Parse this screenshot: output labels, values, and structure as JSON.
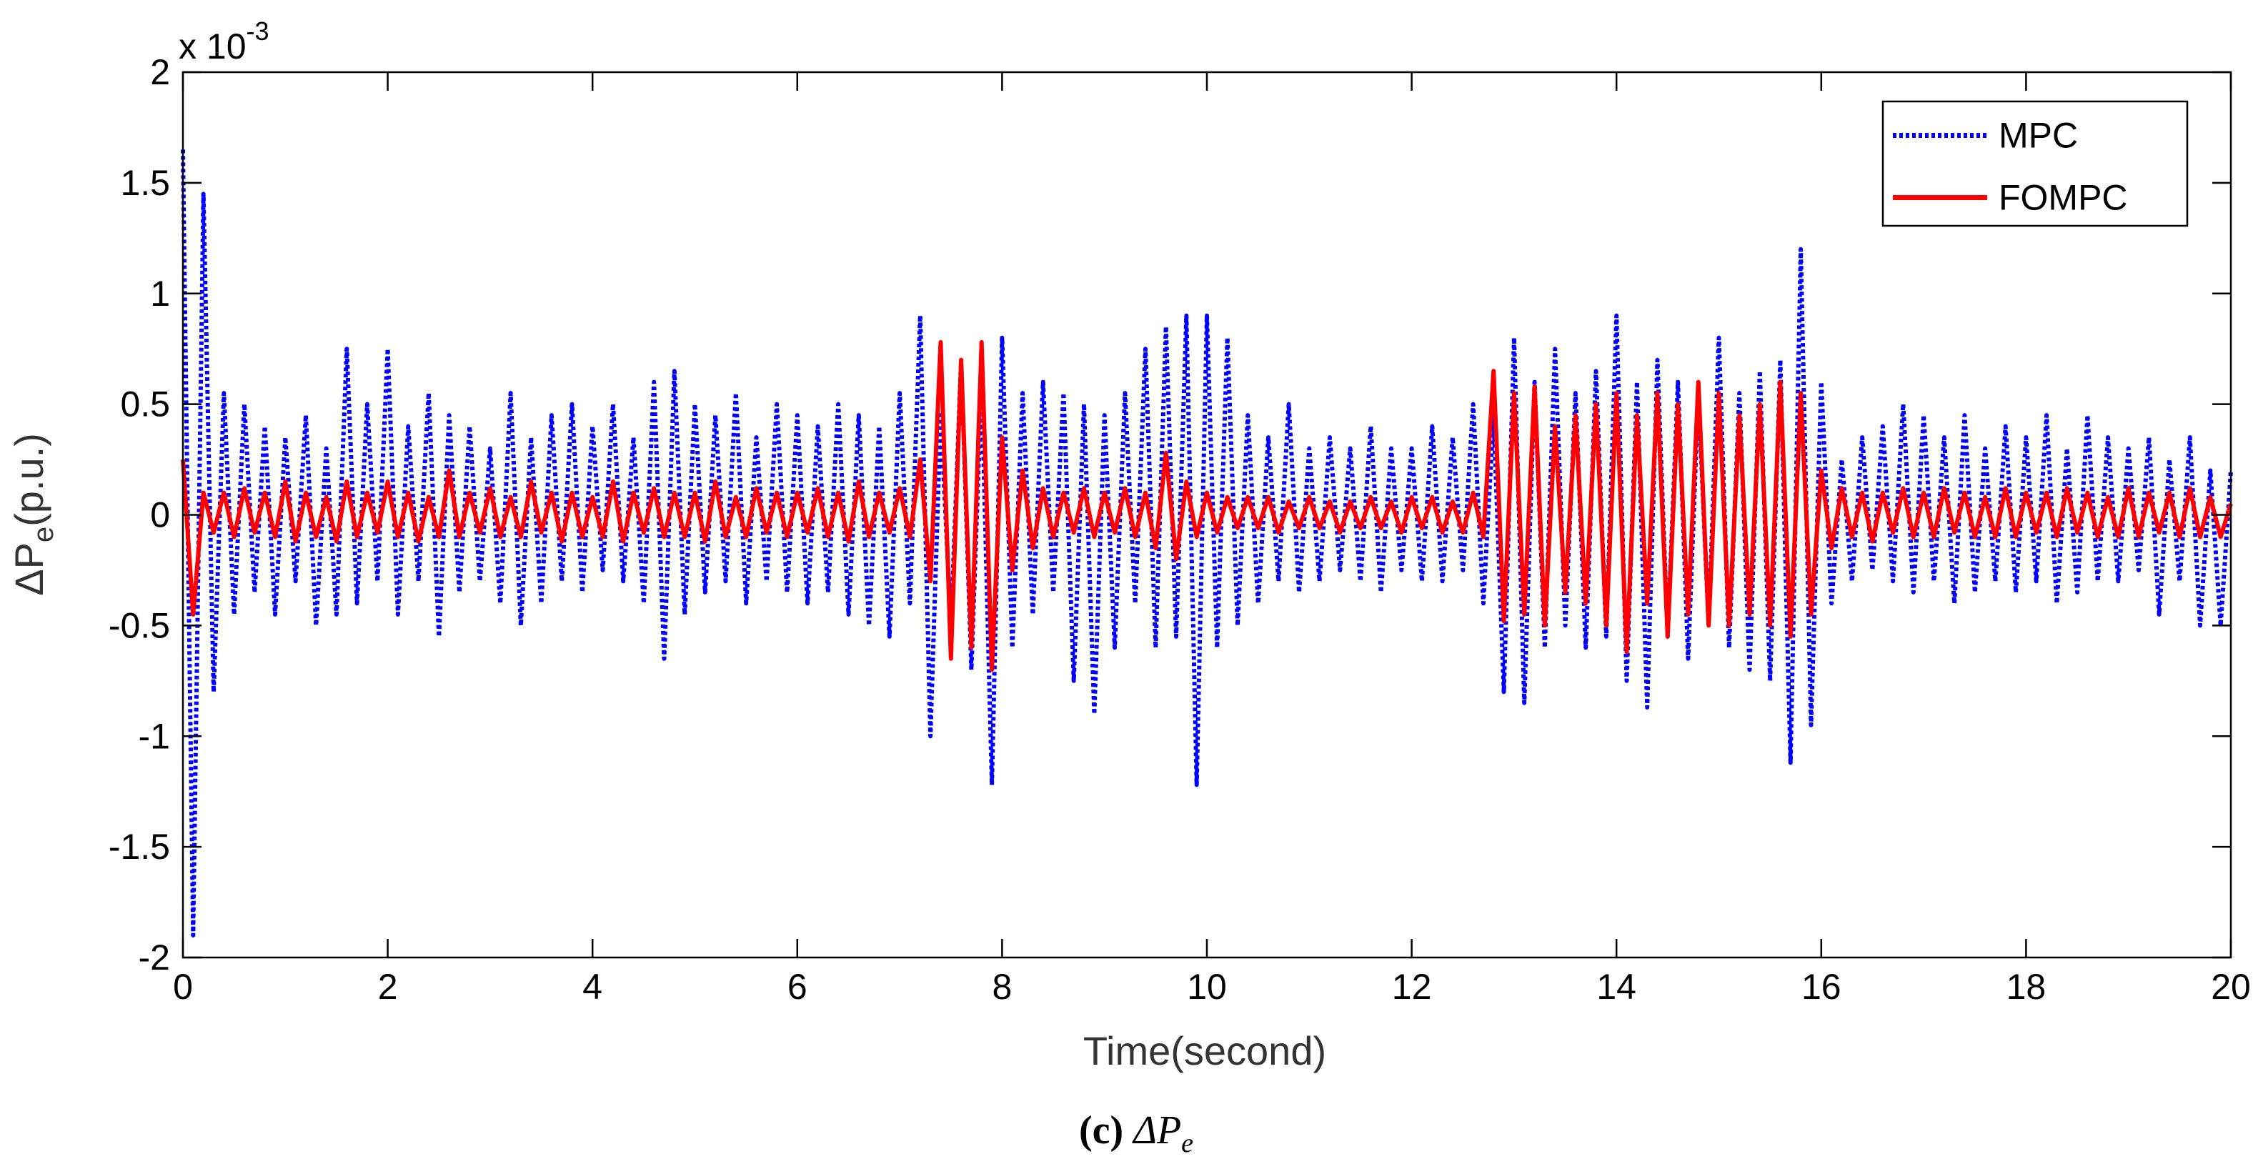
{
  "chart_data": {
    "type": "line",
    "x_label": "Time(second)",
    "y_label": {
      "symbol": "ΔP",
      "subscript": "e",
      "unit": "(p.u.)"
    },
    "y_multiplier": {
      "base": "x 10",
      "exponent": "-3"
    },
    "caption": {
      "label": "(c)",
      "symbol": "ΔP",
      "subscript": "e"
    },
    "xlim": [
      0,
      20
    ],
    "xticks": [
      0,
      2,
      4,
      6,
      8,
      10,
      12,
      14,
      16,
      18,
      20
    ],
    "ylim": [
      -2,
      2
    ],
    "yticks": [
      -2,
      -1.5,
      -1,
      -0.5,
      0,
      0.5,
      1,
      1.5,
      2
    ],
    "grid": false,
    "legend": "upper right",
    "x": [
      0,
      0.1,
      0.2,
      0.3,
      0.4,
      0.5,
      0.6,
      0.7,
      0.8,
      0.9,
      1,
      1.1,
      1.2,
      1.3,
      1.4,
      1.5,
      1.6,
      1.7,
      1.8,
      1.9,
      2,
      2.1,
      2.2,
      2.3,
      2.4,
      2.5,
      2.6,
      2.7,
      2.8,
      2.9,
      3,
      3.1,
      3.2,
      3.3,
      3.4,
      3.5,
      3.6,
      3.7,
      3.8,
      3.9,
      4,
      4.1,
      4.2,
      4.3,
      4.4,
      4.5,
      4.6,
      4.7,
      4.8,
      4.9,
      5,
      5.1,
      5.2,
      5.3,
      5.4,
      5.5,
      5.6,
      5.7,
      5.8,
      5.9,
      6,
      6.1,
      6.2,
      6.3,
      6.4,
      6.5,
      6.6,
      6.7,
      6.8,
      6.9,
      7,
      7.1,
      7.2,
      7.3,
      7.4,
      7.5,
      7.6,
      7.7,
      7.8,
      7.9,
      8,
      8.1,
      8.2,
      8.3,
      8.4,
      8.5,
      8.6,
      8.7,
      8.8,
      8.9,
      9,
      9.1,
      9.2,
      9.3,
      9.4,
      9.5,
      9.6,
      9.7,
      9.8,
      9.9,
      10,
      10.1,
      10.2,
      10.3,
      10.4,
      10.5,
      10.6,
      10.7,
      10.8,
      10.9,
      11,
      11.1,
      11.2,
      11.3,
      11.4,
      11.5,
      11.6,
      11.7,
      11.8,
      11.9,
      12,
      12.1,
      12.2,
      12.3,
      12.4,
      12.5,
      12.6,
      12.7,
      12.8,
      12.9,
      13,
      13.1,
      13.2,
      13.3,
      13.4,
      13.5,
      13.6,
      13.7,
      13.8,
      13.9,
      14,
      14.1,
      14.2,
      14.3,
      14.4,
      14.5,
      14.6,
      14.7,
      14.8,
      14.9,
      15,
      15.1,
      15.2,
      15.3,
      15.4,
      15.5,
      15.6,
      15.7,
      15.8,
      15.9,
      16,
      16.1,
      16.2,
      16.3,
      16.4,
      16.5,
      16.6,
      16.7,
      16.8,
      16.9,
      17,
      17.1,
      17.2,
      17.3,
      17.4,
      17.5,
      17.6,
      17.7,
      17.8,
      17.9,
      18,
      18.1,
      18.2,
      18.3,
      18.4,
      18.5,
      18.6,
      18.7,
      18.8,
      18.9,
      19,
      19.1,
      19.2,
      19.3,
      19.4,
      19.5,
      19.6,
      19.7,
      19.8,
      19.9,
      20
    ],
    "series": [
      {
        "name": "MPC",
        "color": "#0000ff",
        "style": "dotted",
        "values": [
          1.65,
          -1.9,
          1.45,
          -0.8,
          0.55,
          -0.45,
          0.5,
          -0.35,
          0.4,
          -0.45,
          0.35,
          -0.3,
          0.45,
          -0.5,
          0.3,
          -0.45,
          0.75,
          -0.4,
          0.5,
          -0.3,
          0.75,
          -0.45,
          0.4,
          -0.3,
          0.55,
          -0.55,
          0.45,
          -0.35,
          0.4,
          -0.3,
          0.3,
          -0.4,
          0.55,
          -0.5,
          0.35,
          -0.4,
          0.45,
          -0.3,
          0.5,
          -0.35,
          0.4,
          -0.25,
          0.5,
          -0.3,
          0.35,
          -0.4,
          0.6,
          -0.65,
          0.65,
          -0.45,
          0.5,
          -0.35,
          0.45,
          -0.3,
          0.55,
          -0.4,
          0.35,
          -0.3,
          0.5,
          -0.35,
          0.45,
          -0.4,
          0.4,
          -0.35,
          0.5,
          -0.45,
          0.45,
          -0.5,
          0.4,
          -0.55,
          0.55,
          -0.4,
          0.9,
          -1.0,
          0.45,
          -0.5,
          0.7,
          -0.7,
          0.6,
          -1.22,
          0.8,
          -0.6,
          0.55,
          -0.45,
          0.6,
          -0.35,
          0.55,
          -0.75,
          0.5,
          -0.9,
          0.45,
          -0.6,
          0.55,
          -0.4,
          0.75,
          -0.6,
          0.85,
          -0.55,
          0.9,
          -1.22,
          0.9,
          -0.6,
          0.8,
          -0.5,
          0.45,
          -0.4,
          0.35,
          -0.3,
          0.5,
          -0.35,
          0.3,
          -0.3,
          0.35,
          -0.25,
          0.3,
          -0.3,
          0.4,
          -0.35,
          0.3,
          -0.25,
          0.3,
          -0.3,
          0.4,
          -0.3,
          0.35,
          -0.25,
          0.5,
          -0.4,
          0.45,
          -0.8,
          0.8,
          -0.85,
          0.6,
          -0.6,
          0.75,
          -0.5,
          0.55,
          -0.6,
          0.65,
          -0.55,
          0.9,
          -0.75,
          0.6,
          -0.87,
          0.7,
          -0.55,
          0.6,
          -0.65,
          0.55,
          -0.5,
          0.8,
          -0.6,
          0.55,
          -0.7,
          0.65,
          -0.75,
          0.7,
          -1.12,
          1.2,
          -0.95,
          0.6,
          -0.4,
          0.25,
          -0.3,
          0.35,
          -0.25,
          0.4,
          -0.3,
          0.5,
          -0.35,
          0.45,
          -0.3,
          0.35,
          -0.4,
          0.45,
          -0.35,
          0.3,
          -0.3,
          0.4,
          -0.35,
          0.35,
          -0.3,
          0.45,
          -0.4,
          0.3,
          -0.35,
          0.45,
          -0.3,
          0.35,
          -0.3,
          0.3,
          -0.25,
          0.35,
          -0.45,
          0.25,
          -0.3,
          0.35,
          -0.5,
          0.2,
          -0.5,
          0.2
        ]
      },
      {
        "name": "FOMPC",
        "color": "#ff0000",
        "style": "solid",
        "values": [
          0.25,
          -0.45,
          0.1,
          -0.08,
          0.1,
          -0.1,
          0.12,
          -0.08,
          0.1,
          -0.1,
          0.15,
          -0.12,
          0.1,
          -0.1,
          0.08,
          -0.12,
          0.15,
          -0.1,
          0.1,
          -0.08,
          0.15,
          -0.1,
          0.1,
          -0.12,
          0.08,
          -0.1,
          0.2,
          -0.1,
          0.1,
          -0.08,
          0.12,
          -0.1,
          0.08,
          -0.1,
          0.15,
          -0.08,
          0.1,
          -0.12,
          0.1,
          -0.1,
          0.08,
          -0.1,
          0.15,
          -0.12,
          0.1,
          -0.08,
          0.12,
          -0.1,
          0.1,
          -0.1,
          0.1,
          -0.12,
          0.15,
          -0.1,
          0.08,
          -0.1,
          0.12,
          -0.08,
          0.1,
          -0.1,
          0.1,
          -0.08,
          0.12,
          -0.1,
          0.1,
          -0.12,
          0.15,
          -0.1,
          0.1,
          -0.08,
          0.12,
          -0.1,
          0.25,
          -0.3,
          0.78,
          -0.65,
          0.7,
          -0.6,
          0.78,
          -0.7,
          0.35,
          -0.25,
          0.2,
          -0.15,
          0.12,
          -0.1,
          0.1,
          -0.08,
          0.12,
          -0.1,
          0.1,
          -0.08,
          0.12,
          -0.1,
          0.1,
          -0.15,
          0.28,
          -0.2,
          0.15,
          -0.1,
          0.1,
          -0.08,
          0.08,
          -0.06,
          0.08,
          -0.06,
          0.08,
          -0.08,
          0.06,
          -0.06,
          0.08,
          -0.06,
          0.06,
          -0.08,
          0.06,
          -0.06,
          0.08,
          -0.06,
          0.06,
          -0.08,
          0.08,
          -0.06,
          0.08,
          -0.08,
          0.06,
          -0.08,
          0.1,
          -0.1,
          0.65,
          -0.48,
          0.55,
          -0.45,
          0.58,
          -0.5,
          0.4,
          -0.35,
          0.45,
          -0.4,
          0.5,
          -0.5,
          0.55,
          -0.62,
          0.45,
          -0.4,
          0.55,
          -0.55,
          0.5,
          -0.45,
          0.6,
          -0.5,
          0.55,
          -0.5,
          0.45,
          -0.45,
          0.5,
          -0.5,
          0.6,
          -0.55,
          0.55,
          -0.45,
          0.2,
          -0.15,
          0.12,
          -0.1,
          0.1,
          -0.12,
          0.1,
          -0.08,
          0.12,
          -0.1,
          0.1,
          -0.1,
          0.12,
          -0.08,
          0.1,
          -0.1,
          0.08,
          -0.1,
          0.12,
          -0.1,
          0.1,
          -0.08,
          0.1,
          -0.1,
          0.12,
          -0.08,
          0.1,
          -0.1,
          0.08,
          -0.1,
          0.12,
          -0.1,
          0.1,
          -0.08,
          0.1,
          -0.1,
          0.12,
          -0.1,
          0.08,
          -0.1,
          0.05
        ]
      }
    ]
  }
}
